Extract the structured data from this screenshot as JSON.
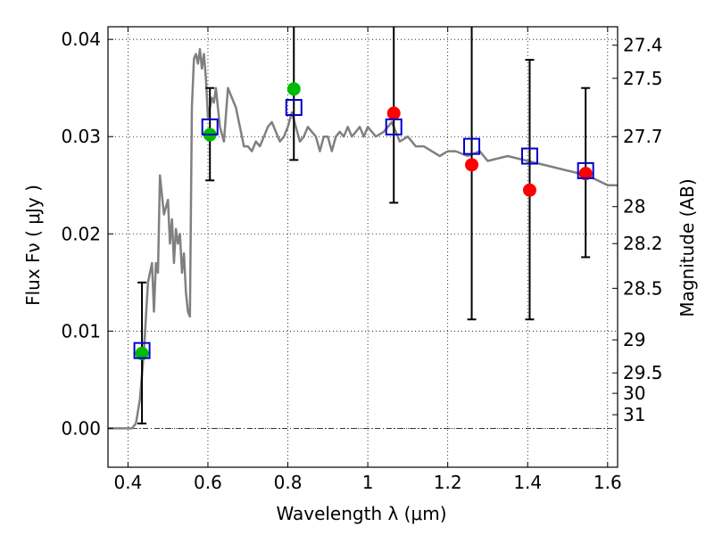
{
  "chart_data": {
    "type": "scatter",
    "xlabel": "Wavelength  λ (μm)",
    "ylabel": "Flux  Fν  ( μJy )",
    "y2label": "Magnitude (AB)",
    "xlim": [
      0.35,
      1.625
    ],
    "ylim": [
      -0.004,
      0.0413
    ],
    "grid": true,
    "x_ticks": [
      0.4,
      0.6,
      0.8,
      1.0,
      1.2,
      1.4,
      1.6
    ],
    "x_tick_labels": [
      "0.4",
      "0.6",
      "0.8",
      "1",
      "1.2",
      "1.4",
      "1.6"
    ],
    "y_ticks": [
      0.0,
      0.01,
      0.02,
      0.03,
      0.04
    ],
    "y_tick_labels": [
      "0.00",
      "0.01",
      "0.02",
      "0.03",
      "0.04"
    ],
    "y2_ticks": [
      {
        "label": "27.4",
        "flux": 0.0394
      },
      {
        "label": "27.5",
        "flux": 0.036
      },
      {
        "label": "27.7",
        "flux": 0.03
      },
      {
        "label": "28",
        "flux": 0.0228
      },
      {
        "label": "28.2",
        "flux": 0.019
      },
      {
        "label": "28.5",
        "flux": 0.0144
      },
      {
        "label": "29",
        "flux": 0.0091
      },
      {
        "label": "29.5",
        "flux": 0.0057
      },
      {
        "label": "30",
        "flux": 0.0036
      },
      {
        "label": "31",
        "flux": 0.0014
      }
    ],
    "series": [
      {
        "kind": "model_spectrum",
        "color": "#808080",
        "x": [
          0.35,
          0.41,
          0.42,
          0.43,
          0.44,
          0.45,
          0.46,
          0.465,
          0.47,
          0.475,
          0.48,
          0.49,
          0.5,
          0.505,
          0.51,
          0.515,
          0.52,
          0.525,
          0.53,
          0.535,
          0.54,
          0.545,
          0.55,
          0.555,
          0.56,
          0.565,
          0.57,
          0.575,
          0.58,
          0.585,
          0.59,
          0.595,
          0.6,
          0.605,
          0.61,
          0.615,
          0.62,
          0.63,
          0.64,
          0.65,
          0.66,
          0.67,
          0.68,
          0.69,
          0.7,
          0.71,
          0.72,
          0.73,
          0.74,
          0.75,
          0.76,
          0.77,
          0.78,
          0.79,
          0.8,
          0.81,
          0.82,
          0.83,
          0.84,
          0.85,
          0.86,
          0.87,
          0.88,
          0.89,
          0.9,
          0.91,
          0.92,
          0.93,
          0.94,
          0.95,
          0.96,
          0.97,
          0.98,
          0.99,
          1.0,
          1.02,
          1.04,
          1.06,
          1.08,
          1.1,
          1.12,
          1.14,
          1.16,
          1.18,
          1.2,
          1.22,
          1.25,
          1.28,
          1.3,
          1.35,
          1.4,
          1.45,
          1.5,
          1.55,
          1.6,
          1.625
        ],
        "y": [
          0.0,
          0.0,
          0.0005,
          0.003,
          0.008,
          0.015,
          0.017,
          0.012,
          0.017,
          0.016,
          0.026,
          0.022,
          0.0235,
          0.019,
          0.0215,
          0.017,
          0.0205,
          0.019,
          0.02,
          0.016,
          0.018,
          0.014,
          0.012,
          0.0115,
          0.033,
          0.038,
          0.0385,
          0.0375,
          0.039,
          0.037,
          0.0385,
          0.036,
          0.032,
          0.033,
          0.034,
          0.0335,
          0.035,
          0.031,
          0.0295,
          0.035,
          0.034,
          0.033,
          0.031,
          0.029,
          0.029,
          0.0285,
          0.0295,
          0.029,
          0.03,
          0.031,
          0.0315,
          0.0305,
          0.0295,
          0.03,
          0.031,
          0.0325,
          0.031,
          0.0295,
          0.03,
          0.031,
          0.0305,
          0.03,
          0.0285,
          0.03,
          0.03,
          0.0285,
          0.03,
          0.0305,
          0.03,
          0.031,
          0.03,
          0.0305,
          0.031,
          0.03,
          0.031,
          0.03,
          0.0305,
          0.0315,
          0.0295,
          0.03,
          0.029,
          0.029,
          0.0285,
          0.028,
          0.0285,
          0.0285,
          0.028,
          0.0285,
          0.0275,
          0.028,
          0.0275,
          0.027,
          0.0265,
          0.026,
          0.025,
          0.025
        ]
      },
      {
        "kind": "model_photometry",
        "marker": "open-square",
        "color": "#0000cc",
        "x": [
          0.435,
          0.605,
          0.815,
          1.065,
          1.26,
          1.405,
          1.545
        ],
        "y": [
          0.008,
          0.031,
          0.033,
          0.031,
          0.029,
          0.028,
          0.0265
        ]
      },
      {
        "kind": "detections",
        "marker": "filled-circle",
        "color": "#00bb00",
        "x": [
          0.435,
          0.605,
          0.815
        ],
        "y": [
          0.0077,
          0.0302,
          0.0349
        ]
      },
      {
        "kind": "detections",
        "marker": "filled-circle",
        "color": "#ff0000",
        "x": [
          1.065,
          1.26,
          1.405,
          1.545
        ],
        "y": [
          0.0324,
          0.0271,
          0.0245,
          0.0262
        ]
      },
      {
        "kind": "error_bars",
        "color": "#000000",
        "x": [
          0.435,
          0.605,
          0.815,
          1.065,
          1.26,
          1.405,
          1.545
        ],
        "y_low": [
          0.0005,
          0.0255,
          0.0276,
          0.0232,
          0.0112,
          0.0112,
          0.0176
        ],
        "y_high": [
          0.015,
          0.035,
          0.0413,
          0.0413,
          0.0413,
          0.0379,
          0.035
        ]
      }
    ]
  }
}
